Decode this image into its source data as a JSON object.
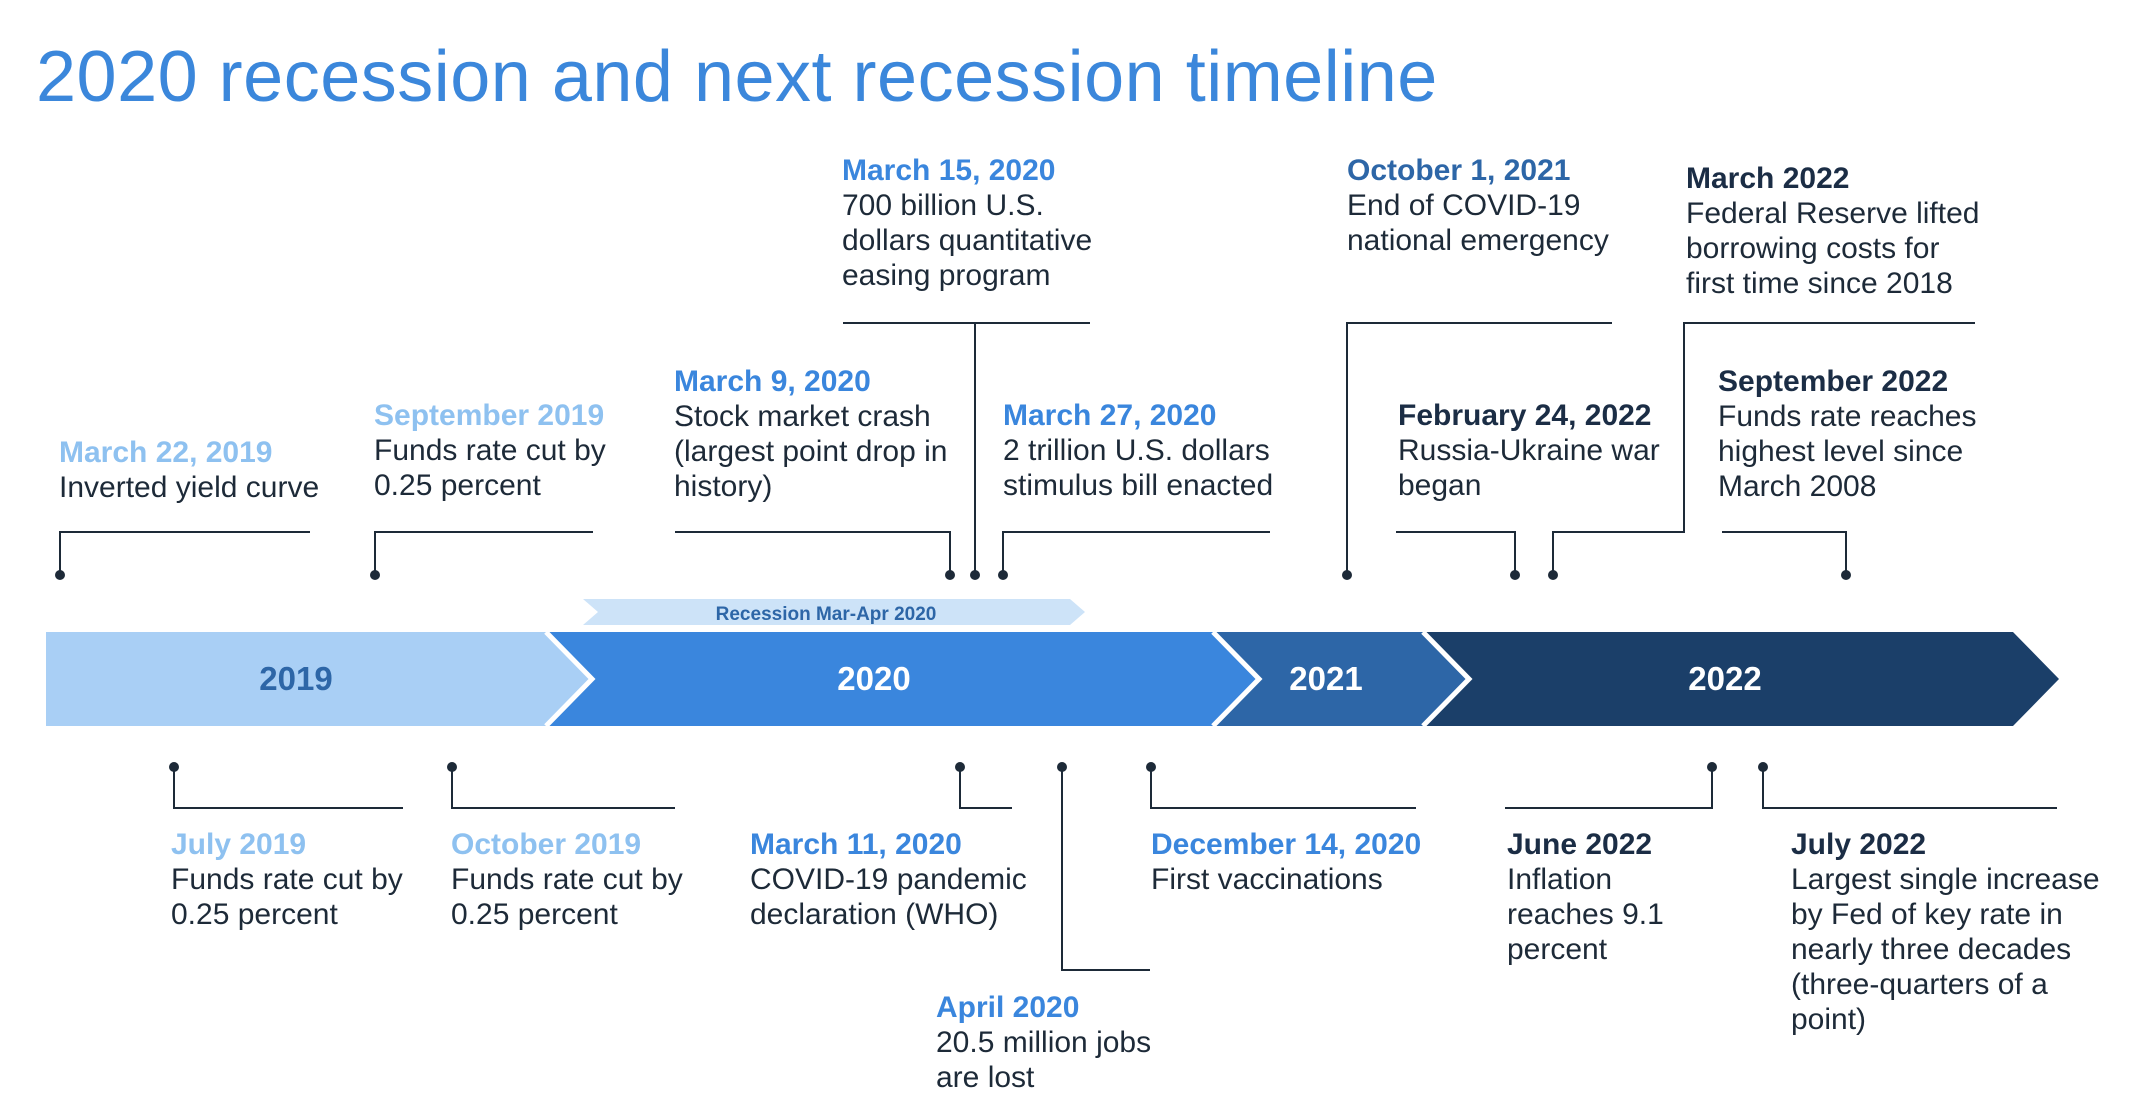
{
  "title": "2020 recession and next recession timeline",
  "colors": {
    "y2019": "#a9cff5",
    "y2020": "#3a86dd",
    "y2021": "#2d66a7",
    "y2022": "#1b3f69",
    "recession_band": "#cde3f8",
    "recession_text": "#2d66a7",
    "connector": "#1d2a38",
    "date_light": "#8ec1f0",
    "date_mid": "#3a86dd",
    "date_dark": "#2d66a7",
    "date_navy": "#1b2d45"
  },
  "years": [
    {
      "label": "2019"
    },
    {
      "label": "2020"
    },
    {
      "label": "2021"
    },
    {
      "label": "2022"
    }
  ],
  "recession_band": {
    "label": "Recession Mar-Apr 2020"
  },
  "events_top": [
    {
      "date": "March 22, 2019",
      "desc": "Inverted yield curve",
      "tone": "date_light"
    },
    {
      "date": "September 2019",
      "desc": "Funds rate cut by\n0.25 percent",
      "tone": "date_light"
    },
    {
      "date": "March 9, 2020",
      "desc": "Stock market crash\n(largest point drop in\nhistory)",
      "tone": "date_mid"
    },
    {
      "date": "March 15, 2020",
      "desc": "700 billion U.S.\ndollars quantitative\neasing program",
      "tone": "date_mid"
    },
    {
      "date": "March 27, 2020",
      "desc": "2 trillion U.S. dollars\nstimulus bill enacted",
      "tone": "date_mid"
    },
    {
      "date": "October 1, 2021",
      "desc": "End of COVID-19\nnational emergency",
      "tone": "date_dark"
    },
    {
      "date": "February 24, 2022",
      "desc": "Russia-Ukraine war\nbegan",
      "tone": "date_navy"
    },
    {
      "date": "March 2022",
      "desc": "Federal Reserve lifted\nborrowing costs for\nfirst time since 2018",
      "tone": "date_navy"
    },
    {
      "date": "September 2022",
      "desc": "Funds rate reaches\nhighest level since\nMarch 2008",
      "tone": "date_navy"
    }
  ],
  "events_bottom": [
    {
      "date": "July 2019",
      "desc": "Funds rate cut by\n0.25 percent",
      "tone": "date_light"
    },
    {
      "date": "October 2019",
      "desc": "Funds rate cut by\n0.25 percent",
      "tone": "date_light"
    },
    {
      "date": "March 11, 2020",
      "desc": "COVID-19 pandemic\ndeclaration (WHO)",
      "tone": "date_mid"
    },
    {
      "date": "April 2020",
      "desc": "20.5 million jobs\nare lost",
      "tone": "date_mid"
    },
    {
      "date": "December 14, 2020",
      "desc": "First vaccinations",
      "tone": "date_mid"
    },
    {
      "date": "June 2022",
      "desc": "Inflation\nreaches 9.1\npercent",
      "tone": "date_navy"
    },
    {
      "date": "July 2022",
      "desc": "Largest single increase\nby Fed of key rate in\nnearly three decades\n(three-quarters of a\npoint)",
      "tone": "date_navy"
    }
  ]
}
